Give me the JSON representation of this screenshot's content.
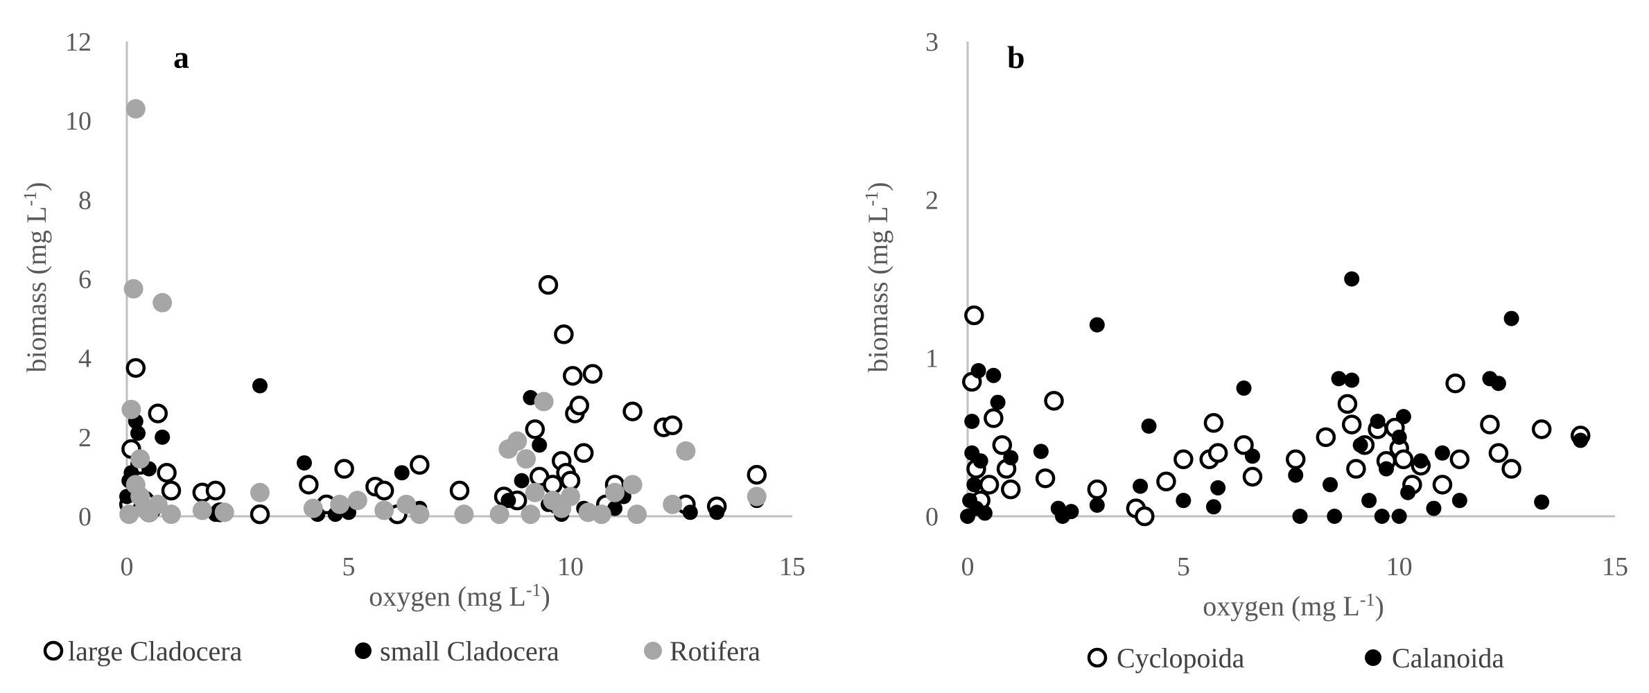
{
  "chart_data": [
    {
      "type": "scatter",
      "panel_label": "a",
      "xlabel": "oxygen (mg L",
      "xlabel_sup": "-1",
      "xlabel_end": ")",
      "ylabel": "biomass (mg L",
      "ylabel_sup": "-1",
      "ylabel_end": ")",
      "xlim": [
        0,
        15
      ],
      "ylim": [
        0,
        12
      ],
      "xticks": [
        "0",
        "5",
        "10",
        "15"
      ],
      "yticks": [
        "0",
        "2",
        "4",
        "6",
        "8",
        "10",
        "12"
      ],
      "grid": false,
      "legend_position": "bottom",
      "series": [
        {
          "name": "large Cladocera",
          "marker": "open-circle",
          "color": "#000000",
          "points": [
            [
              0.05,
              0.3
            ],
            [
              0.1,
              1.7
            ],
            [
              0.2,
              3.75
            ],
            [
              0.3,
              1.3
            ],
            [
              0.4,
              0.4
            ],
            [
              0.5,
              0.1
            ],
            [
              0.7,
              2.6
            ],
            [
              0.9,
              1.1
            ],
            [
              1.0,
              0.65
            ],
            [
              1.7,
              0.6
            ],
            [
              2.0,
              0.65
            ],
            [
              2.1,
              0.1
            ],
            [
              3.0,
              0.05
            ],
            [
              4.1,
              0.8
            ],
            [
              4.5,
              0.3
            ],
            [
              4.9,
              1.2
            ],
            [
              5.6,
              0.75
            ],
            [
              5.8,
              0.65
            ],
            [
              6.1,
              0.05
            ],
            [
              6.6,
              1.3
            ],
            [
              7.5,
              0.65
            ],
            [
              8.5,
              0.5
            ],
            [
              8.8,
              0.4
            ],
            [
              9.2,
              2.2
            ],
            [
              9.3,
              1.0
            ],
            [
              9.5,
              5.85
            ],
            [
              9.6,
              0.8
            ],
            [
              9.7,
              0.3
            ],
            [
              9.8,
              1.4
            ],
            [
              9.85,
              4.6
            ],
            [
              9.9,
              1.1
            ],
            [
              10.0,
              0.9
            ],
            [
              10.05,
              3.55
            ],
            [
              10.1,
              2.6
            ],
            [
              10.2,
              2.8
            ],
            [
              10.3,
              1.6
            ],
            [
              10.5,
              3.6
            ],
            [
              10.8,
              0.3
            ],
            [
              11.0,
              0.8
            ],
            [
              11.4,
              2.65
            ],
            [
              12.1,
              2.25
            ],
            [
              12.3,
              2.3
            ],
            [
              12.6,
              0.3
            ],
            [
              13.3,
              0.25
            ],
            [
              14.2,
              1.05
            ]
          ]
        },
        {
          "name": "small Cladocera",
          "marker": "filled-circle",
          "color": "#000000",
          "points": [
            [
              0.0,
              0.5
            ],
            [
              0.05,
              0.9
            ],
            [
              0.1,
              1.1
            ],
            [
              0.2,
              2.4
            ],
            [
              0.25,
              2.1
            ],
            [
              0.3,
              0.2
            ],
            [
              0.5,
              1.2
            ],
            [
              0.6,
              0.15
            ],
            [
              0.8,
              2.0
            ],
            [
              1.0,
              0.1
            ],
            [
              2.0,
              0.05
            ],
            [
              3.0,
              3.3
            ],
            [
              4.0,
              1.35
            ],
            [
              4.3,
              0.05
            ],
            [
              4.7,
              0.05
            ],
            [
              5.0,
              0.1
            ],
            [
              6.2,
              1.1
            ],
            [
              6.6,
              0.2
            ],
            [
              8.6,
              0.4
            ],
            [
              8.9,
              0.9
            ],
            [
              9.1,
              3.0
            ],
            [
              9.3,
              1.8
            ],
            [
              9.5,
              0.3
            ],
            [
              9.8,
              0.05
            ],
            [
              10.3,
              0.2
            ],
            [
              11.0,
              0.2
            ],
            [
              11.2,
              0.5
            ],
            [
              12.7,
              0.1
            ],
            [
              13.3,
              0.1
            ],
            [
              14.2,
              0.4
            ]
          ]
        },
        {
          "name": "Rotifera",
          "marker": "filled-circle",
          "color": "#a6a6a6",
          "points": [
            [
              0.2,
              10.3
            ],
            [
              0.15,
              5.75
            ],
            [
              0.8,
              5.4
            ],
            [
              0.1,
              2.7
            ],
            [
              0.3,
              1.45
            ],
            [
              0.2,
              0.8
            ],
            [
              0.3,
              0.5
            ],
            [
              0.4,
              0.2
            ],
            [
              0.5,
              0.1
            ],
            [
              0.7,
              0.3
            ],
            [
              1.0,
              0.05
            ],
            [
              1.7,
              0.15
            ],
            [
              2.2,
              0.1
            ],
            [
              3.0,
              0.6
            ],
            [
              4.2,
              0.2
            ],
            [
              4.8,
              0.3
            ],
            [
              5.2,
              0.4
            ],
            [
              5.8,
              0.15
            ],
            [
              6.3,
              0.3
            ],
            [
              6.6,
              0.05
            ],
            [
              7.6,
              0.05
            ],
            [
              8.6,
              1.7
            ],
            [
              8.8,
              1.9
            ],
            [
              9.0,
              1.45
            ],
            [
              9.2,
              0.6
            ],
            [
              9.4,
              2.9
            ],
            [
              9.6,
              0.4
            ],
            [
              9.8,
              0.2
            ],
            [
              10.0,
              0.5
            ],
            [
              10.4,
              0.1
            ],
            [
              11.0,
              0.6
            ],
            [
              11.4,
              0.8
            ],
            [
              12.3,
              0.3
            ],
            [
              12.6,
              1.65
            ],
            [
              14.2,
              0.5
            ],
            [
              0.05,
              0.05
            ],
            [
              8.4,
              0.05
            ],
            [
              9.1,
              0.05
            ],
            [
              10.7,
              0.05
            ],
            [
              11.5,
              0.05
            ]
          ]
        }
      ]
    },
    {
      "type": "scatter",
      "panel_label": "b",
      "xlabel": "oxygen (mg L",
      "xlabel_sup": "-1",
      "xlabel_end": ")",
      "ylabel": "biomass (mg L",
      "ylabel_sup": "-1",
      "ylabel_end": ")",
      "xlim": [
        0,
        15
      ],
      "ylim": [
        0,
        3
      ],
      "xticks": [
        "0",
        "5",
        "10",
        "15"
      ],
      "yticks": [
        "0",
        "1",
        "2",
        "3"
      ],
      "grid": false,
      "legend_position": "bottom",
      "series": [
        {
          "name": "Cyclopoida",
          "marker": "open-circle",
          "color": "#000000",
          "points": [
            [
              0.1,
              0.85
            ],
            [
              0.15,
              1.27
            ],
            [
              0.2,
              0.3
            ],
            [
              0.3,
              0.1
            ],
            [
              0.5,
              0.2
            ],
            [
              0.6,
              0.62
            ],
            [
              0.8,
              0.45
            ],
            [
              0.9,
              0.3
            ],
            [
              1.0,
              0.17
            ],
            [
              1.8,
              0.24
            ],
            [
              2.0,
              0.73
            ],
            [
              3.0,
              0.17
            ],
            [
              3.9,
              0.05
            ],
            [
              4.1,
              0.0
            ],
            [
              4.6,
              0.22
            ],
            [
              5.0,
              0.36
            ],
            [
              5.6,
              0.36
            ],
            [
              5.7,
              0.59
            ],
            [
              5.8,
              0.4
            ],
            [
              6.4,
              0.45
            ],
            [
              6.6,
              0.25
            ],
            [
              7.6,
              0.36
            ],
            [
              8.3,
              0.5
            ],
            [
              8.8,
              0.71
            ],
            [
              8.9,
              0.58
            ],
            [
              9.0,
              0.3
            ],
            [
              9.2,
              0.45
            ],
            [
              9.5,
              0.55
            ],
            [
              9.7,
              0.35
            ],
            [
              9.9,
              0.56
            ],
            [
              10.0,
              0.43
            ],
            [
              10.1,
              0.36
            ],
            [
              10.3,
              0.2
            ],
            [
              10.5,
              0.32
            ],
            [
              11.0,
              0.2
            ],
            [
              11.3,
              0.84
            ],
            [
              11.4,
              0.36
            ],
            [
              12.1,
              0.58
            ],
            [
              12.3,
              0.4
            ],
            [
              12.6,
              0.3
            ],
            [
              13.3,
              0.55
            ],
            [
              14.2,
              0.51
            ]
          ]
        },
        {
          "name": "Calanoida",
          "marker": "filled-circle",
          "color": "#000000",
          "points": [
            [
              0.0,
              0.0
            ],
            [
              0.05,
              0.1
            ],
            [
              0.1,
              0.4
            ],
            [
              0.1,
              0.6
            ],
            [
              0.15,
              0.2
            ],
            [
              0.2,
              0.05
            ],
            [
              0.25,
              0.92
            ],
            [
              0.3,
              0.35
            ],
            [
              0.4,
              0.02
            ],
            [
              0.6,
              0.89
            ],
            [
              0.7,
              0.72
            ],
            [
              1.0,
              0.37
            ],
            [
              1.7,
              0.41
            ],
            [
              2.1,
              0.05
            ],
            [
              2.2,
              0.0
            ],
            [
              2.4,
              0.03
            ],
            [
              3.0,
              1.21
            ],
            [
              3.0,
              0.07
            ],
            [
              4.0,
              0.19
            ],
            [
              4.2,
              0.57
            ],
            [
              5.0,
              0.1
            ],
            [
              5.7,
              0.06
            ],
            [
              5.8,
              0.18
            ],
            [
              6.4,
              0.81
            ],
            [
              6.6,
              0.38
            ],
            [
              7.6,
              0.26
            ],
            [
              7.7,
              0.0
            ],
            [
              8.4,
              0.2
            ],
            [
              8.6,
              0.87
            ],
            [
              8.9,
              1.5
            ],
            [
              8.9,
              0.86
            ],
            [
              9.1,
              0.45
            ],
            [
              9.3,
              0.1
            ],
            [
              9.5,
              0.6
            ],
            [
              9.7,
              0.3
            ],
            [
              10.0,
              0.5
            ],
            [
              10.1,
              0.63
            ],
            [
              10.2,
              0.15
            ],
            [
              10.5,
              0.35
            ],
            [
              11.0,
              0.4
            ],
            [
              11.4,
              0.1
            ],
            [
              12.1,
              0.87
            ],
            [
              12.3,
              0.84
            ],
            [
              12.6,
              1.25
            ],
            [
              13.3,
              0.09
            ],
            [
              14.2,
              0.48
            ],
            [
              8.5,
              0.0
            ],
            [
              9.6,
              0.0
            ],
            [
              10.0,
              0.0
            ],
            [
              10.8,
              0.05
            ]
          ]
        }
      ]
    }
  ]
}
